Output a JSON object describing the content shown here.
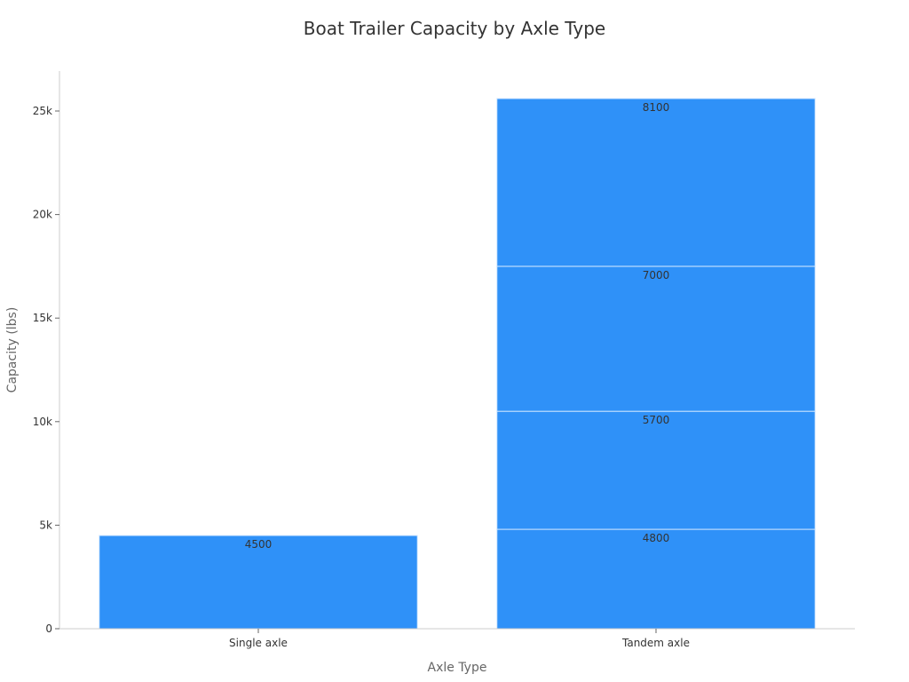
{
  "chart_data": {
    "type": "bar",
    "stacked": true,
    "title": "Boat Trailer Capacity by Axle Type",
    "xlabel": "Axle Type",
    "ylabel": "Capacity (lbs)",
    "categories": [
      "Single axle",
      "Tandem axle"
    ],
    "stacks": [
      {
        "category": "Single axle",
        "segments": [
          4500
        ]
      },
      {
        "category": "Tandem axle",
        "segments": [
          4800,
          5700,
          7000,
          8100
        ]
      }
    ],
    "ylim": [
      0,
      27000
    ],
    "yticks": [
      {
        "value": 0,
        "label": "0"
      },
      {
        "value": 5000,
        "label": "5k"
      },
      {
        "value": 10000,
        "label": "10k"
      },
      {
        "value": 15000,
        "label": "15k"
      },
      {
        "value": 20000,
        "label": "20k"
      },
      {
        "value": 25000,
        "label": "25k"
      }
    ],
    "bar_color": "#2f91f8",
    "segment_border_color": "#cfe6ff",
    "axis_color": "#cccccc",
    "grid": false,
    "legend": false
  }
}
